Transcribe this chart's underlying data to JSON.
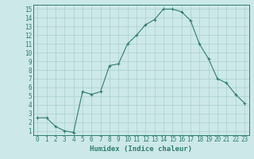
{
  "x": [
    0,
    1,
    2,
    3,
    4,
    5,
    6,
    7,
    8,
    9,
    10,
    11,
    12,
    13,
    14,
    15,
    16,
    17,
    18,
    19,
    20,
    21,
    22,
    23
  ],
  "y": [
    2.5,
    2.5,
    1.5,
    1.0,
    0.8,
    5.5,
    5.2,
    5.5,
    8.5,
    8.7,
    11.0,
    12.0,
    13.2,
    13.8,
    15.0,
    15.0,
    14.7,
    13.7,
    11.0,
    9.3,
    7.0,
    6.5,
    5.2,
    4.2
  ],
  "line_color": "#2e7d6e",
  "marker": "+",
  "marker_size": 3,
  "marker_lw": 0.8,
  "line_width": 0.8,
  "bg_color": "#cce8e8",
  "grid_color": "#aacfcf",
  "xlabel": "Humidex (Indice chaleur)",
  "xlim": [
    -0.5,
    23.5
  ],
  "ylim": [
    0.5,
    15.5
  ],
  "yticks": [
    1,
    2,
    3,
    4,
    5,
    6,
    7,
    8,
    9,
    10,
    11,
    12,
    13,
    14,
    15
  ],
  "xticks": [
    0,
    1,
    2,
    3,
    4,
    5,
    6,
    7,
    8,
    9,
    10,
    11,
    12,
    13,
    14,
    15,
    16,
    17,
    18,
    19,
    20,
    21,
    22,
    23
  ],
  "font_color": "#2e7d6e",
  "tick_fontsize": 5.5,
  "label_fontsize": 6.5,
  "spine_color": "#2e7d6e"
}
